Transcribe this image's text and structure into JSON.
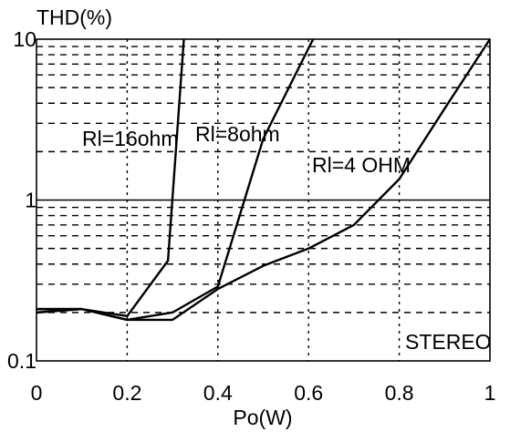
{
  "chart_data": {
    "type": "line",
    "title": "",
    "ylabel": "THD(%)",
    "xlabel": "Po(W)",
    "xlim": [
      0,
      1
    ],
    "ylim": [
      0.1,
      10
    ],
    "yscale": "log",
    "grid": true,
    "x_ticks": [
      "0",
      "0.2",
      "0.4",
      "0.6",
      "0.8",
      "1"
    ],
    "y_ticks": [
      "0.1",
      "1",
      "10"
    ],
    "annotations": [
      "Rl=16ohm",
      "Rl=8ohm",
      "Rl=4 OHM",
      "STEREO"
    ],
    "series": [
      {
        "name": "Rl=16ohm",
        "points": [
          [
            0.0,
            0.21
          ],
          [
            0.1,
            0.21
          ],
          [
            0.2,
            0.19
          ],
          [
            0.29,
            0.42
          ],
          [
            0.325,
            10
          ]
        ]
      },
      {
        "name": "Rl=8ohm",
        "points": [
          [
            0.0,
            0.21
          ],
          [
            0.1,
            0.21
          ],
          [
            0.2,
            0.18
          ],
          [
            0.3,
            0.2
          ],
          [
            0.4,
            0.29
          ],
          [
            0.5,
            2.4
          ],
          [
            0.61,
            10
          ]
        ]
      },
      {
        "name": "Rl=4 OHM",
        "points": [
          [
            0.0,
            0.2
          ],
          [
            0.1,
            0.21
          ],
          [
            0.2,
            0.18
          ],
          [
            0.3,
            0.18
          ],
          [
            0.4,
            0.28
          ],
          [
            0.5,
            0.39
          ],
          [
            0.6,
            0.5
          ],
          [
            0.7,
            0.7
          ],
          [
            0.8,
            1.35
          ],
          [
            0.9,
            3.7
          ],
          [
            1.0,
            10
          ]
        ]
      }
    ]
  }
}
